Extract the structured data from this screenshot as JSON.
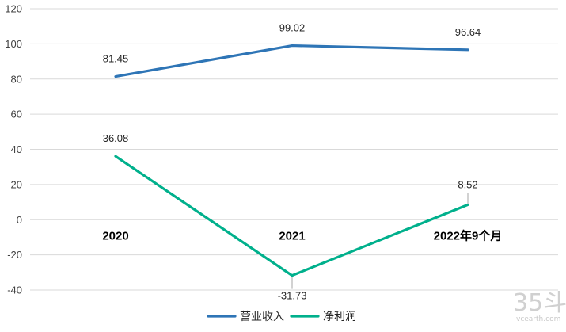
{
  "chart_data": {
    "type": "line",
    "title": "",
    "xlabel": "",
    "ylabel": "",
    "categories": [
      "2020",
      "2021",
      "2022年9个月"
    ],
    "ylim": [
      -40,
      120
    ],
    "yticks": [
      -40,
      -20,
      0,
      20,
      40,
      60,
      80,
      100,
      120
    ],
    "ytick_labels": [
      "-40",
      "-20",
      "0",
      "20",
      "40",
      "60",
      "80",
      "100",
      "120"
    ],
    "grid": true,
    "legend_position": "bottom",
    "series": [
      {
        "name": "营业收入",
        "color": "#2e75b6",
        "values": [
          81.45,
          99.02,
          96.64
        ],
        "labels": [
          "81.45",
          "99.02",
          "96.64"
        ]
      },
      {
        "name": "净利润",
        "color": "#00b08c",
        "values": [
          36.08,
          -31.73,
          8.52
        ],
        "labels": [
          "36.08",
          "-31.73",
          "8.52"
        ]
      }
    ]
  },
  "watermark": {
    "logo": "35斗",
    "site": "vcearth.com"
  }
}
